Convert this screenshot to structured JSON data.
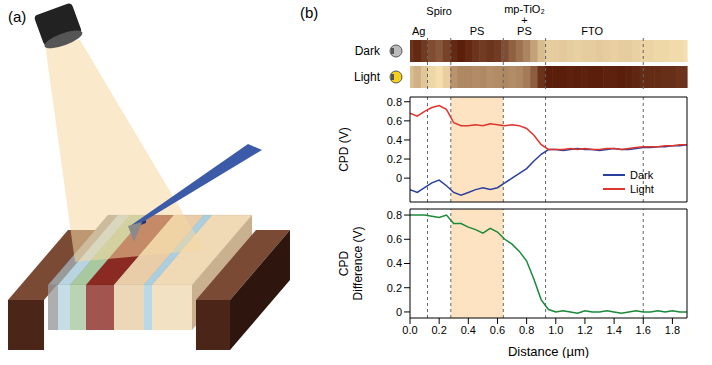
{
  "chart_data": {
    "type": "line",
    "panel_labels": [
      "(a)",
      "(b)"
    ],
    "regions": [
      {
        "label": "Ag",
        "x": 0.06
      },
      {
        "label": "Spiro",
        "x": 0.2
      },
      {
        "label": "PS",
        "x": 0.46
      },
      {
        "label": "mp-TiO₂ + PS",
        "x": 0.785
      },
      {
        "label": "FTO",
        "x": 1.25
      }
    ],
    "boundaries": [
      0.12,
      0.28,
      0.64,
      0.93,
      1.6
    ],
    "shaded": [
      0.28,
      0.64
    ],
    "x": [
      0,
      0.05,
      0.1,
      0.15,
      0.2,
      0.25,
      0.3,
      0.35,
      0.4,
      0.45,
      0.5,
      0.55,
      0.6,
      0.65,
      0.7,
      0.75,
      0.8,
      0.85,
      0.9,
      0.95,
      1.0,
      1.05,
      1.1,
      1.15,
      1.2,
      1.25,
      1.3,
      1.35,
      1.4,
      1.45,
      1.5,
      1.55,
      1.6,
      1.65,
      1.7,
      1.75,
      1.8,
      1.85,
      1.9
    ],
    "xlim": [
      0,
      1.9
    ],
    "xticks": [
      {
        "value": 0,
        "label": "0.0"
      },
      0.2,
      0.4,
      0.6,
      0.8,
      {
        "value": 1,
        "label": "1.0"
      },
      1.2,
      1.4,
      1.6,
      1.8
    ],
    "xlabel": "Distance (µm)",
    "panels": [
      {
        "ylabel": "CPD (V)",
        "ylim": [
          -0.25,
          0.85
        ],
        "yticks": [
          0,
          0.2,
          0.4,
          0.6,
          0.8
        ],
        "legend": "lower right",
        "series": [
          {
            "name": "Dark",
            "color": "#2b3f9e",
            "values": [
              -0.12,
              -0.15,
              -0.1,
              -0.05,
              -0.02,
              -0.08,
              -0.15,
              -0.18,
              -0.15,
              -0.12,
              -0.1,
              -0.12,
              -0.1,
              -0.05,
              0,
              0.05,
              0.1,
              0.18,
              0.25,
              0.3,
              0.3,
              0.29,
              0.3,
              0.31,
              0.3,
              0.3,
              0.29,
              0.3,
              0.31,
              0.3,
              0.3,
              0.31,
              0.32,
              0.32,
              0.33,
              0.33,
              0.34,
              0.34,
              0.35
            ]
          },
          {
            "name": "Light",
            "color": "#e0352b",
            "values": [
              0.68,
              0.65,
              0.7,
              0.74,
              0.76,
              0.72,
              0.58,
              0.55,
              0.55,
              0.56,
              0.55,
              0.57,
              0.56,
              0.55,
              0.56,
              0.55,
              0.52,
              0.45,
              0.35,
              0.3,
              0.3,
              0.3,
              0.31,
              0.3,
              0.31,
              0.3,
              0.3,
              0.31,
              0.31,
              0.3,
              0.31,
              0.32,
              0.33,
              0.33,
              0.33,
              0.34,
              0.34,
              0.35,
              0.35
            ]
          }
        ]
      },
      {
        "ylabel": "CPD Difference (V)",
        "ylim": [
          -0.05,
          0.85
        ],
        "yticks": [
          0,
          0.2,
          0.4,
          0.6,
          0.8
        ],
        "series": [
          {
            "color": "#1a8a3a",
            "values": [
              0.8,
              0.8,
              0.8,
              0.79,
              0.78,
              0.8,
              0.73,
              0.73,
              0.7,
              0.68,
              0.65,
              0.69,
              0.66,
              0.6,
              0.56,
              0.5,
              0.42,
              0.27,
              0.1,
              0.02,
              0,
              0.01,
              0,
              -0.01,
              0.01,
              0,
              0,
              0.01,
              0,
              -0.01,
              0,
              0.01,
              0,
              0,
              0.01,
              0,
              0.01,
              0,
              0
            ]
          }
        ]
      }
    ]
  }
}
